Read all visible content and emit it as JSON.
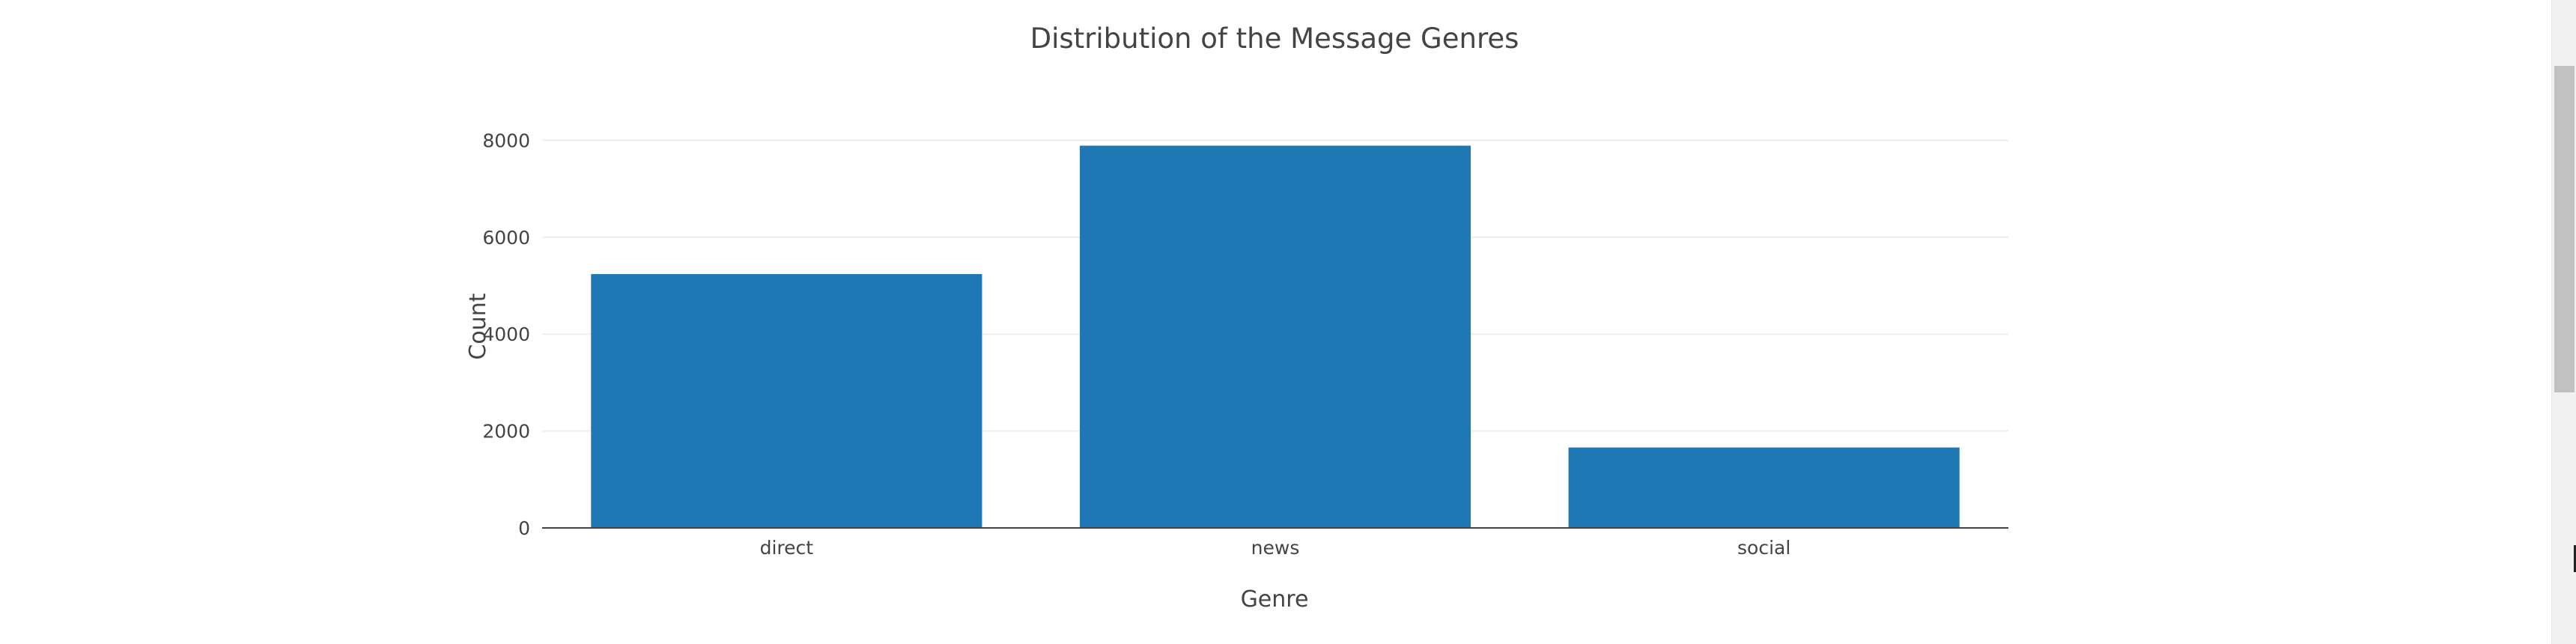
{
  "chart_data": {
    "type": "bar",
    "title": "Distribution of the Message Genres",
    "xlabel": "Genre",
    "ylabel": "Count",
    "categories": [
      "direct",
      "news",
      "social"
    ],
    "values": [
      5240,
      7890,
      1660
    ],
    "ylim": [
      0,
      8300
    ],
    "yticks": [
      0,
      2000,
      4000,
      6000,
      8000
    ],
    "grid": true,
    "bar_color": "#1f77b4"
  },
  "colors": {
    "text": "#444444",
    "grid": "#eeeeee",
    "axis_line": "#444444"
  }
}
